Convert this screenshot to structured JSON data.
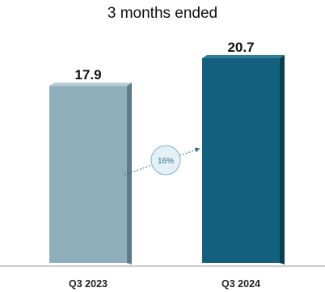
{
  "chart_data": {
    "type": "bar",
    "title": "3 months ended",
    "categories": [
      "Q3 2023",
      "Q3 2024"
    ],
    "values": [
      17.9,
      20.7
    ],
    "value_labels": [
      "17.9",
      "20.7"
    ],
    "ylim": [
      0,
      20.7
    ],
    "grid": false,
    "legend": "none",
    "growth_label": "16%",
    "colors": {
      "bar_front": [
        "#8faebc",
        "#13607e"
      ],
      "bar_side": [
        "#5e7c89",
        "#0c3e52"
      ],
      "bar_top": [
        "#b6ccd6",
        "#2f7d99"
      ],
      "axis": "#9a9a9a",
      "growth_circle_fill": "#e4f0f5",
      "growth_circle_stroke": "#7fb0c6",
      "arrow": "#2a6f8f"
    }
  }
}
